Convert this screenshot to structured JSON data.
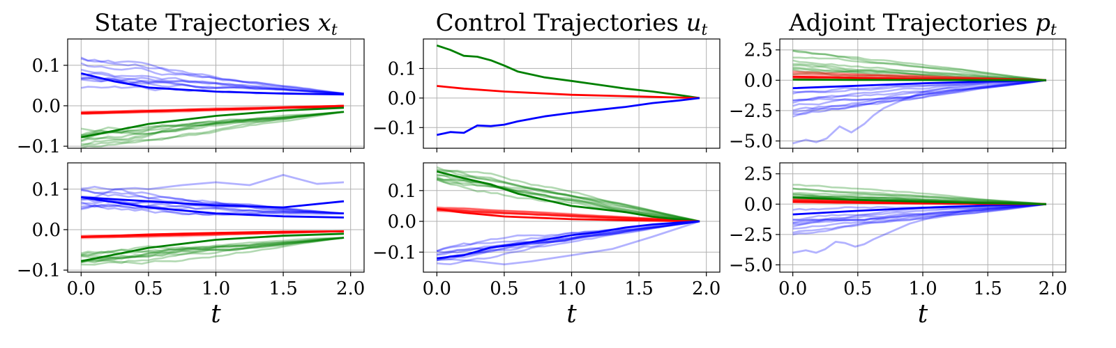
{
  "chart_data": [
    {
      "type": "line",
      "panel": "state-top",
      "row": 0,
      "col": 0,
      "title": "State Trajectories",
      "title_math": "x",
      "title_sub": "t",
      "xlim": [
        -0.1,
        2.1
      ],
      "ylim": [
        -0.105,
        0.165
      ],
      "yticks": [
        -0.1,
        0.0,
        0.1
      ],
      "ytick_labels": [
        "−0.1",
        "0.0",
        "0.1"
      ],
      "xticks": [
        0,
        0.5,
        1.0,
        1.5,
        2.0
      ],
      "xtick_labels": [],
      "bundles": [
        {
          "color": "#0000ff",
          "count": 10,
          "start": 0.08,
          "end": 0.03,
          "spread": 0.07,
          "noise": 0.012,
          "opacity": 0.3
        },
        {
          "color": "#ff0000",
          "count": 10,
          "start": -0.018,
          "end": 0.0,
          "spread": 0.008,
          "noise": 0.002,
          "opacity": 0.3
        },
        {
          "color": "#008000",
          "count": 10,
          "start": -0.078,
          "end": -0.015,
          "spread": 0.06,
          "noise": 0.01,
          "opacity": 0.3
        }
      ],
      "lines": [
        {
          "color": "#0000ff",
          "x": [
            0,
            0.25,
            0.5,
            1.0,
            1.5,
            1.95
          ],
          "y": [
            0.08,
            0.06,
            0.045,
            0.035,
            0.03,
            0.028
          ]
        },
        {
          "color": "#ff0000",
          "x": [
            0,
            0.5,
            1.0,
            1.5,
            1.95
          ],
          "y": [
            -0.018,
            -0.013,
            -0.009,
            -0.005,
            -0.003
          ]
        },
        {
          "color": "#008000",
          "x": [
            0,
            0.5,
            1.0,
            1.5,
            1.95
          ],
          "y": [
            -0.078,
            -0.045,
            -0.025,
            -0.012,
            -0.005
          ]
        }
      ]
    },
    {
      "type": "line",
      "panel": "control-top",
      "row": 0,
      "col": 1,
      "title": "Control Trajectories",
      "title_math": "u",
      "title_sub": "t",
      "xlim": [
        -0.1,
        2.1
      ],
      "ylim": [
        -0.17,
        0.2
      ],
      "yticks": [
        -0.1,
        0.0,
        0.1
      ],
      "ytick_labels": [
        "−0.1",
        "0.0",
        "0.1"
      ],
      "xticks": [
        0,
        0.5,
        1.0,
        1.5,
        2.0
      ],
      "xtick_labels": [],
      "bundles": [],
      "lines": [
        {
          "color": "#008000",
          "x": [
            0,
            0.1,
            0.2,
            0.3,
            0.4,
            0.5,
            0.6,
            0.8,
            1.0,
            1.2,
            1.4,
            1.6,
            1.8,
            1.95
          ],
          "y": [
            0.178,
            0.163,
            0.143,
            0.14,
            0.128,
            0.11,
            0.09,
            0.07,
            0.058,
            0.045,
            0.032,
            0.022,
            0.01,
            0.0
          ]
        },
        {
          "color": "#ff0000",
          "x": [
            0,
            0.2,
            0.5,
            1.0,
            1.5,
            1.95
          ],
          "y": [
            0.041,
            0.032,
            0.022,
            0.011,
            0.005,
            0.0
          ]
        },
        {
          "color": "#0000ff",
          "x": [
            0,
            0.1,
            0.2,
            0.3,
            0.4,
            0.5,
            0.6,
            0.8,
            1.0,
            1.2,
            1.4,
            1.6,
            1.8,
            1.95
          ],
          "y": [
            -0.125,
            -0.115,
            -0.118,
            -0.093,
            -0.095,
            -0.09,
            -0.079,
            -0.062,
            -0.05,
            -0.04,
            -0.03,
            -0.017,
            -0.008,
            0.0
          ]
        }
      ]
    },
    {
      "type": "line",
      "panel": "adjoint-top",
      "row": 0,
      "col": 2,
      "title": "Adjoint Trajectories",
      "title_math": "p",
      "title_sub": "t",
      "xlim": [
        -0.1,
        2.1
      ],
      "ylim": [
        -5.6,
        3.4
      ],
      "yticks": [
        -5.0,
        -2.5,
        0.0,
        2.5
      ],
      "ytick_labels": [
        "−5.0",
        "−2.5",
        "0.0",
        "2.5"
      ],
      "xticks": [
        0,
        0.5,
        1.0,
        1.5,
        2.0
      ],
      "xtick_labels": [],
      "bundles": [
        {
          "color": "#008000",
          "count": 10,
          "start": 1.4,
          "end": 0.0,
          "spread": 2.0,
          "noise": 0.18,
          "opacity": 0.3
        },
        {
          "color": "#ff0000",
          "count": 10,
          "start": 0.4,
          "end": 0.0,
          "spread": 0.9,
          "noise": 0.05,
          "opacity": 0.3
        },
        {
          "color": "#0000ff",
          "count": 10,
          "start": -1.8,
          "end": 0.0,
          "spread": 3.5,
          "noise": 0.25,
          "opacity": 0.3
        }
      ],
      "lines": [
        {
          "color": "#0000ff",
          "x": [
            0,
            0.1,
            0.18,
            0.26,
            0.36,
            0.45,
            0.55,
            0.62,
            0.7,
            0.85,
            1.0,
            1.2,
            1.5,
            1.95
          ],
          "y": [
            -5.2,
            -4.9,
            -5.1,
            -4.8,
            -3.8,
            -4.3,
            -3.6,
            -2.9,
            -2.3,
            -1.6,
            -1.0,
            -0.6,
            -0.2,
            0.0
          ],
          "opacity": 0.3
        },
        {
          "color": "#0000ff",
          "x": [
            0,
            0.5,
            1.0,
            1.5,
            1.95
          ],
          "y": [
            -0.65,
            -0.45,
            -0.25,
            -0.1,
            0.0
          ]
        },
        {
          "color": "#ff0000",
          "x": [
            0,
            0.5,
            1.0,
            1.5,
            1.95
          ],
          "y": [
            0.3,
            0.2,
            0.1,
            0.04,
            0.0
          ]
        },
        {
          "color": "#008000",
          "x": [
            0,
            0.5,
            1.0,
            1.5,
            1.95
          ],
          "y": [
            0.05,
            0.03,
            0.02,
            0.01,
            0.0
          ]
        }
      ]
    },
    {
      "type": "line",
      "panel": "state-bottom",
      "row": 1,
      "col": 0,
      "xlim": [
        -0.1,
        2.1
      ],
      "ylim": [
        -0.105,
        0.165
      ],
      "yticks": [
        -0.1,
        0.0,
        0.1
      ],
      "ytick_labels": [
        "−0.1",
        "0.0",
        "0.1"
      ],
      "xticks": [
        0,
        0.5,
        1.0,
        1.5,
        2.0
      ],
      "xtick_labels": [
        "0.0",
        "0.5",
        "1.0",
        "1.5",
        "2.0"
      ],
      "xlabel": "t",
      "bundles": [
        {
          "color": "#0000ff",
          "count": 10,
          "start": 0.08,
          "end": 0.04,
          "spread": 0.05,
          "noise": 0.012,
          "opacity": 0.3
        },
        {
          "color": "#ff0000",
          "count": 10,
          "start": -0.018,
          "end": -0.004,
          "spread": 0.008,
          "noise": 0.002,
          "opacity": 0.3
        },
        {
          "color": "#008000",
          "count": 10,
          "start": -0.078,
          "end": -0.02,
          "spread": 0.04,
          "noise": 0.01,
          "opacity": 0.3
        }
      ],
      "lines": [
        {
          "color": "#0000ff",
          "x": [
            0,
            0.1,
            0.25,
            0.4,
            0.5,
            0.75,
            1.0,
            1.25,
            1.5,
            1.75,
            1.95
          ],
          "y": [
            0.082,
            0.08,
            0.1,
            0.103,
            0.1,
            0.11,
            0.117,
            0.11,
            0.135,
            0.113,
            0.117
          ],
          "opacity": 0.3
        },
        {
          "color": "#0000ff",
          "x": [
            0,
            0.5,
            1.0,
            1.5,
            1.95
          ],
          "y": [
            0.08,
            0.07,
            0.06,
            0.055,
            0.07
          ]
        },
        {
          "color": "#0000ff",
          "x": [
            0,
            0.5,
            1.0,
            1.5,
            1.95
          ],
          "y": [
            0.08,
            0.055,
            0.04,
            0.033,
            0.03
          ]
        },
        {
          "color": "#ff0000",
          "x": [
            0,
            0.5,
            1.0,
            1.5,
            1.95
          ],
          "y": [
            -0.018,
            -0.012,
            -0.008,
            -0.005,
            -0.004
          ]
        },
        {
          "color": "#008000",
          "x": [
            0,
            0.5,
            1.0,
            1.5,
            1.95
          ],
          "y": [
            -0.078,
            -0.045,
            -0.025,
            -0.015,
            -0.01
          ]
        }
      ]
    },
    {
      "type": "line",
      "panel": "control-bottom",
      "row": 1,
      "col": 1,
      "xlim": [
        -0.1,
        2.1
      ],
      "ylim": [
        -0.165,
        0.19
      ],
      "yticks": [
        -0.1,
        0.0,
        0.1
      ],
      "ytick_labels": [
        "−0.1",
        "0.0",
        "0.1"
      ],
      "xticks": [
        0,
        0.5,
        1.0,
        1.5,
        2.0
      ],
      "xtick_labels": [
        "0.0",
        "0.5",
        "1.0",
        "1.5",
        "2.0"
      ],
      "xlabel": "t",
      "bundles": [
        {
          "color": "#008000",
          "count": 10,
          "start": 0.162,
          "end": 0.0,
          "spread": 0.06,
          "noise": 0.012,
          "opacity": 0.3
        },
        {
          "color": "#ff0000",
          "count": 10,
          "start": 0.04,
          "end": 0.0,
          "spread": 0.02,
          "noise": 0.003,
          "opacity": 0.3
        },
        {
          "color": "#0000ff",
          "count": 10,
          "start": -0.12,
          "end": 0.0,
          "spread": 0.05,
          "noise": 0.012,
          "opacity": 0.3
        }
      ],
      "lines": [
        {
          "color": "#008000",
          "x": [
            0,
            0.2,
            0.4,
            0.6,
            0.8,
            1.0,
            1.2,
            1.4,
            1.6,
            1.8,
            1.95
          ],
          "y": [
            0.162,
            0.14,
            0.12,
            0.09,
            0.07,
            0.05,
            0.04,
            0.03,
            0.015,
            0.006,
            0.0
          ]
        },
        {
          "color": "#ff0000",
          "x": [
            0,
            0.2,
            0.5,
            1.0,
            1.5,
            1.95
          ],
          "y": [
            0.04,
            0.028,
            0.016,
            0.007,
            0.003,
            0.0
          ]
        },
        {
          "color": "#0000ff",
          "x": [
            0,
            0.2,
            0.4,
            0.6,
            0.8,
            1.0,
            1.2,
            1.4,
            1.6,
            1.8,
            1.95
          ],
          "y": [
            -0.12,
            -0.11,
            -0.085,
            -0.075,
            -0.06,
            -0.045,
            -0.035,
            -0.02,
            -0.01,
            -0.004,
            0.0
          ]
        },
        {
          "color": "#0000ff",
          "x": [
            0,
            0.3,
            0.5,
            0.7,
            1.0,
            1.3,
            1.6,
            1.95
          ],
          "y": [
            -0.12,
            -0.13,
            -0.14,
            -0.13,
            -0.11,
            -0.09,
            -0.05,
            0.0
          ],
          "opacity": 0.3
        }
      ]
    },
    {
      "type": "line",
      "panel": "adjoint-bottom",
      "row": 1,
      "col": 2,
      "xlim": [
        -0.1,
        2.1
      ],
      "ylim": [
        -5.6,
        3.4
      ],
      "yticks": [
        -5.0,
        -2.5,
        0.0,
        2.5
      ],
      "ytick_labels": [
        "−5.0",
        "−2.5",
        "0.0",
        "2.5"
      ],
      "xticks": [
        0,
        0.5,
        1.0,
        1.5,
        2.0
      ],
      "xtick_labels": [
        "0.0",
        "0.5",
        "1.0",
        "1.5",
        "2.0"
      ],
      "xlabel": "t",
      "bundles": [
        {
          "color": "#008000",
          "count": 10,
          "start": 1.0,
          "end": 0.0,
          "spread": 1.2,
          "noise": 0.12,
          "opacity": 0.3
        },
        {
          "color": "#ff0000",
          "count": 10,
          "start": 0.25,
          "end": 0.0,
          "spread": 0.4,
          "noise": 0.04,
          "opacity": 0.3
        },
        {
          "color": "#0000ff",
          "count": 10,
          "start": -1.5,
          "end": 0.0,
          "spread": 2.5,
          "noise": 0.2,
          "opacity": 0.3
        }
      ],
      "lines": [
        {
          "color": "#0000ff",
          "x": [
            0,
            0.1,
            0.18,
            0.25,
            0.33,
            0.4,
            0.48,
            0.55,
            0.62,
            0.75,
            0.9,
            1.1,
            1.4,
            1.95
          ],
          "y": [
            -4.0,
            -3.8,
            -4.0,
            -3.7,
            -3.1,
            -3.2,
            -3.5,
            -3.3,
            -2.9,
            -2.3,
            -1.6,
            -1.0,
            -0.4,
            0.0
          ],
          "opacity": 0.3
        },
        {
          "color": "#0000ff",
          "x": [
            0,
            0.5,
            1.0,
            1.5,
            1.95
          ],
          "y": [
            -0.85,
            -0.55,
            -0.3,
            -0.12,
            0.0
          ]
        },
        {
          "color": "#ff0000",
          "x": [
            0,
            0.5,
            1.0,
            1.5,
            1.95
          ],
          "y": [
            0.2,
            0.12,
            0.06,
            0.02,
            0.0
          ]
        },
        {
          "color": "#008000",
          "x": [
            0,
            0.5,
            1.0,
            1.5,
            1.95
          ],
          "y": [
            0.55,
            0.35,
            0.2,
            0.08,
            0.0
          ]
        }
      ]
    }
  ]
}
